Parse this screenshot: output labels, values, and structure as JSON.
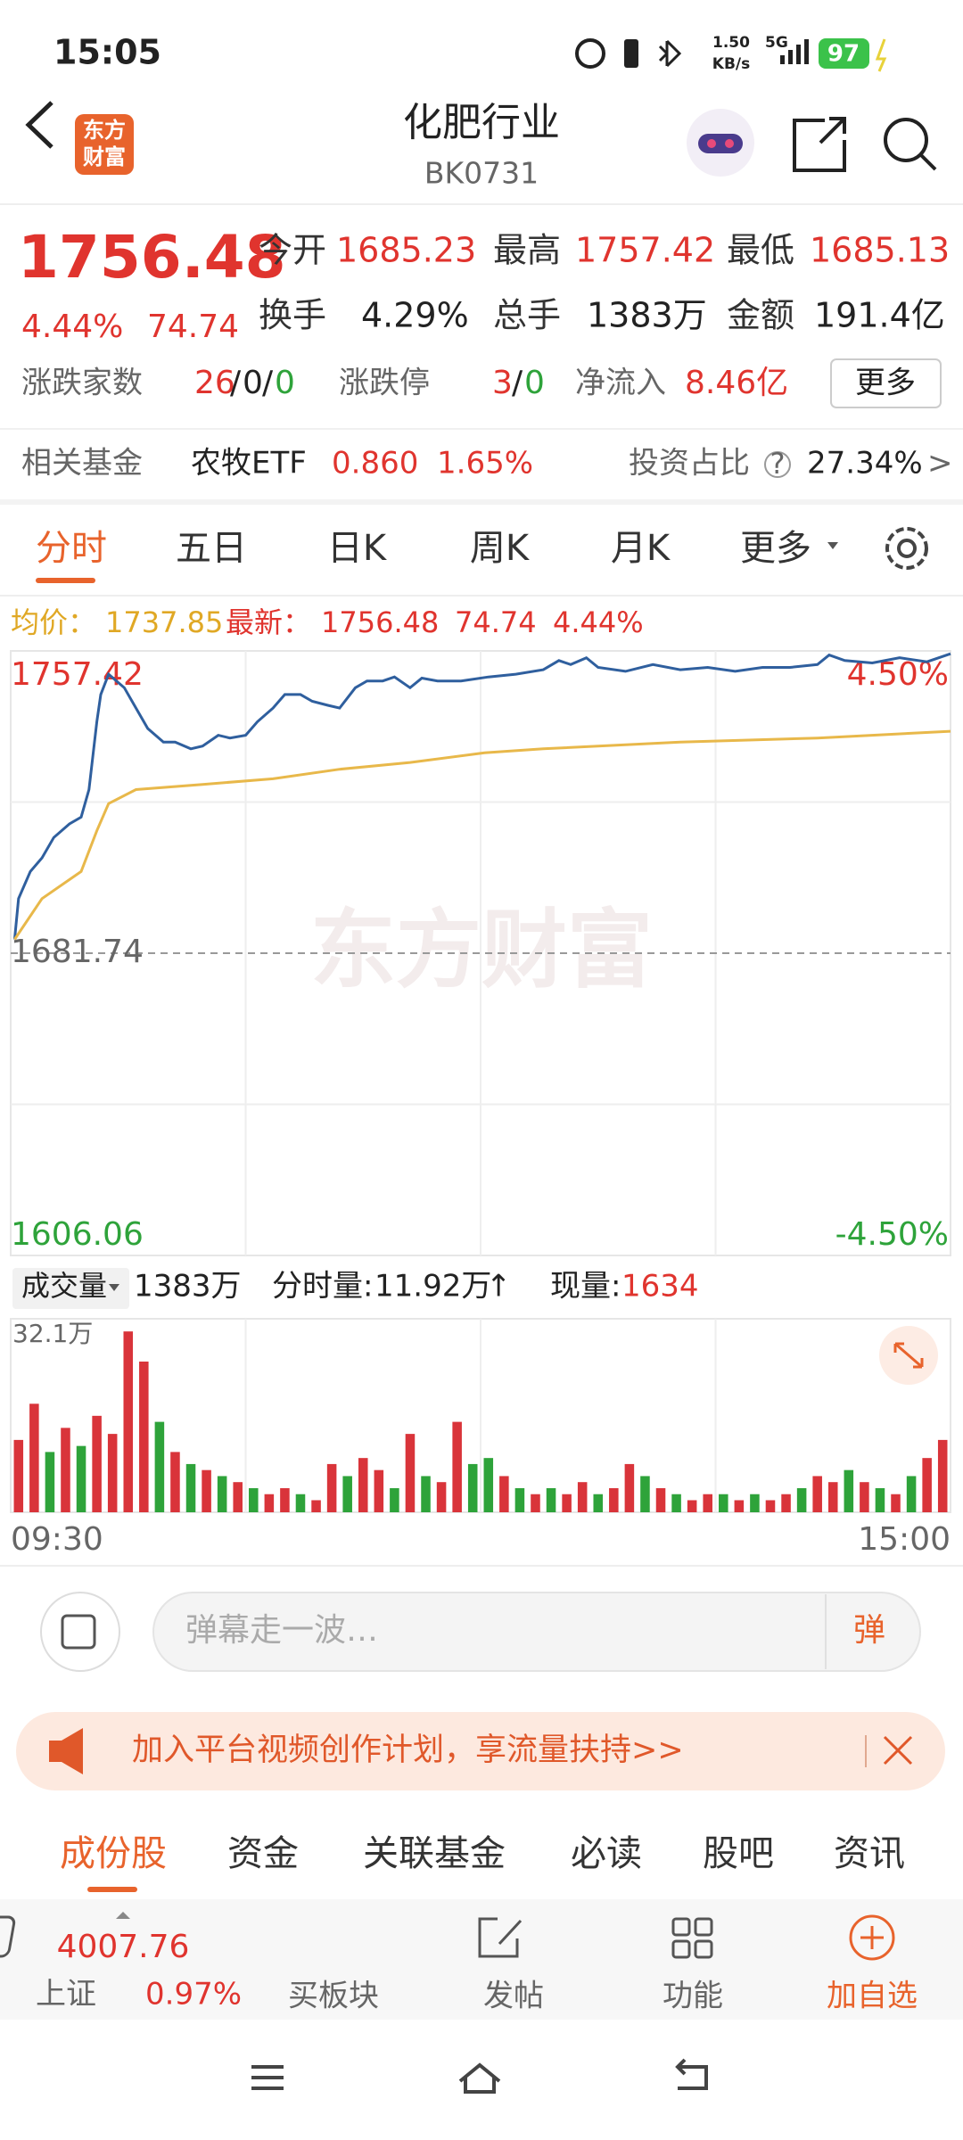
{
  "status": {
    "time": "15:05",
    "net_speed": "1.50",
    "net_unit": "KB/s",
    "signal": "5G",
    "battery": "97"
  },
  "header": {
    "title": "化肥行业",
    "code": "BK0731",
    "logo_line1": "东方",
    "logo_line2": "财富"
  },
  "quote": {
    "price": "1756.48",
    "change_pct": "4.44%",
    "change": "74.74",
    "fields": [
      {
        "label": "今开",
        "value": "1685.23"
      },
      {
        "label": "最高",
        "value": "1757.42"
      },
      {
        "label": "最低",
        "value": "1685.13"
      },
      {
        "label": "换手",
        "value": "4.29%"
      },
      {
        "label": "总手",
        "value": "1383万"
      },
      {
        "label": "金额",
        "value": "191.4亿"
      }
    ],
    "separator": "/",
    "breadth": {
      "label": "涨跌家数",
      "up": "26",
      "flat": "0",
      "down": "0"
    },
    "limit": {
      "label": "涨跌停",
      "up": "3",
      "down": "0"
    },
    "inflow": {
      "label": "净流入",
      "value": "8.46亿"
    },
    "more": "更多"
  },
  "fund": {
    "label": "相关基金",
    "name": "农牧ETF",
    "price": "0.860",
    "pct": "1.65%",
    "ratio_label": "投资占比",
    "help": "?",
    "ratio": "27.34%",
    "arrow": ">"
  },
  "tabs": [
    "分时",
    "五日",
    "日K",
    "周K",
    "月K",
    "更多"
  ],
  "summary": {
    "avg_label": "均价：",
    "avg": "1737.85",
    "last_label": "最新：",
    "last": "1756.48",
    "change": "74.74",
    "pct": "4.44%"
  },
  "chart_data": {
    "type": "line",
    "watermark": "东方财富",
    "xlim": [
      0,
      240
    ],
    "xticks": [
      {
        "value": 0,
        "label": "09:30"
      },
      {
        "value": 240,
        "label": "15:00"
      }
    ],
    "ylim": [
      1606.06,
      1757.42
    ],
    "yticks": [
      1757.42,
      1681.74,
      1606.06
    ],
    "y2lim": [
      -4.5,
      4.5
    ],
    "y2ticks": [
      {
        "value": 4.5,
        "label": "4.50%"
      },
      {
        "value": -4.5,
        "label": "-4.50%"
      }
    ],
    "series": [
      {
        "color": "#2f5f9e",
        "x": [
          1,
          2,
          5,
          8,
          11,
          15,
          18,
          20,
          22,
          23,
          25,
          27,
          29,
          32,
          35,
          39,
          42,
          46,
          49,
          53,
          56,
          60,
          63,
          67,
          70,
          74,
          77,
          81,
          84,
          88,
          91,
          95,
          98,
          102,
          105,
          109,
          115,
          122,
          129,
          136,
          140,
          143,
          147,
          150,
          157,
          164,
          171,
          178,
          185,
          192,
          199,
          206,
          209,
          213,
          220,
          227,
          234,
          240
        ],
        "values": [
          1685.2,
          1695.4,
          1702.2,
          1705.6,
          1710.7,
          1714.1,
          1715.8,
          1722.7,
          1739.7,
          1746.5,
          1751.6,
          1749.9,
          1748.2,
          1743.1,
          1738.0,
          1734.6,
          1734.6,
          1732.9,
          1733.6,
          1736.3,
          1735.6,
          1736.3,
          1739.7,
          1743.1,
          1746.5,
          1746.5,
          1744.8,
          1743.8,
          1743.1,
          1748.2,
          1749.9,
          1749.9,
          1750.9,
          1748.2,
          1750.6,
          1749.9,
          1749.9,
          1750.9,
          1751.6,
          1752.7,
          1755.0,
          1754.0,
          1755.7,
          1753.3,
          1752.3,
          1754.0,
          1752.7,
          1753.3,
          1752.3,
          1753.3,
          1753.3,
          1754.0,
          1756.4,
          1755.0,
          1754.4,
          1755.7,
          1754.7,
          1756.7
        ]
      },
      {
        "color": "#e8b84a",
        "x": [
          1,
          8,
          18,
          22,
          25,
          32,
          49,
          67,
          84,
          102,
          121,
          136,
          171,
          206,
          240
        ],
        "values": [
          1685.2,
          1695.4,
          1702.2,
          1712.4,
          1719.2,
          1722.7,
          1724.0,
          1725.4,
          1727.8,
          1729.5,
          1731.9,
          1732.9,
          1734.6,
          1735.6,
          1737.3
        ]
      }
    ]
  },
  "volume_chart": {
    "type": "bar",
    "label": "成交量",
    "total": "1383万",
    "interval_label": "分时量:",
    "interval": "11.92万",
    "arrow": "↑",
    "current_label": "现量:",
    "current": "1634",
    "ylim": [
      0,
      32.1
    ],
    "yticks": [
      {
        "value": 32.1,
        "label": "32.1万"
      }
    ],
    "up_color": "#d9343a",
    "down_color": "#2ea33a",
    "values": [
      12,
      18,
      10,
      14,
      11,
      16,
      13,
      30,
      25,
      15,
      10,
      8,
      7,
      6,
      5,
      4,
      3,
      4,
      3,
      2,
      8,
      6,
      9,
      7,
      4,
      13,
      6,
      5,
      15,
      8,
      9,
      6,
      4,
      3,
      4,
      3,
      5,
      3,
      4,
      8,
      6,
      4,
      3,
      2,
      3,
      3,
      2,
      3,
      2,
      3,
      4,
      6,
      5,
      7,
      5,
      4,
      3,
      6,
      9,
      12
    ],
    "up": [
      true,
      true,
      false,
      true,
      false,
      true,
      true,
      true,
      true,
      false,
      true,
      false,
      true,
      false,
      true,
      false,
      true,
      true,
      false,
      true,
      true,
      false,
      true,
      true,
      false,
      true,
      false,
      true,
      true,
      false,
      false,
      true,
      false,
      true,
      false,
      true,
      true,
      false,
      true,
      true,
      false,
      true,
      false,
      true,
      true,
      false,
      true,
      false,
      true,
      true,
      false,
      true,
      true,
      false,
      true,
      false,
      true,
      false,
      true,
      true
    ]
  },
  "comment": {
    "placeholder": "弹幕走一波…",
    "button": "弹"
  },
  "banner": {
    "text": "加入平台视频创作计划，享流量扶持>>"
  },
  "bottom_tabs": [
    "成份股",
    "资金",
    "关联基金",
    "必读",
    "股吧",
    "资讯"
  ],
  "footer": {
    "index_value": "4007.76",
    "index_name": "上证",
    "index_pct": "0.97%",
    "items": [
      "买板块",
      "发帖",
      "功能",
      "加自选"
    ]
  }
}
